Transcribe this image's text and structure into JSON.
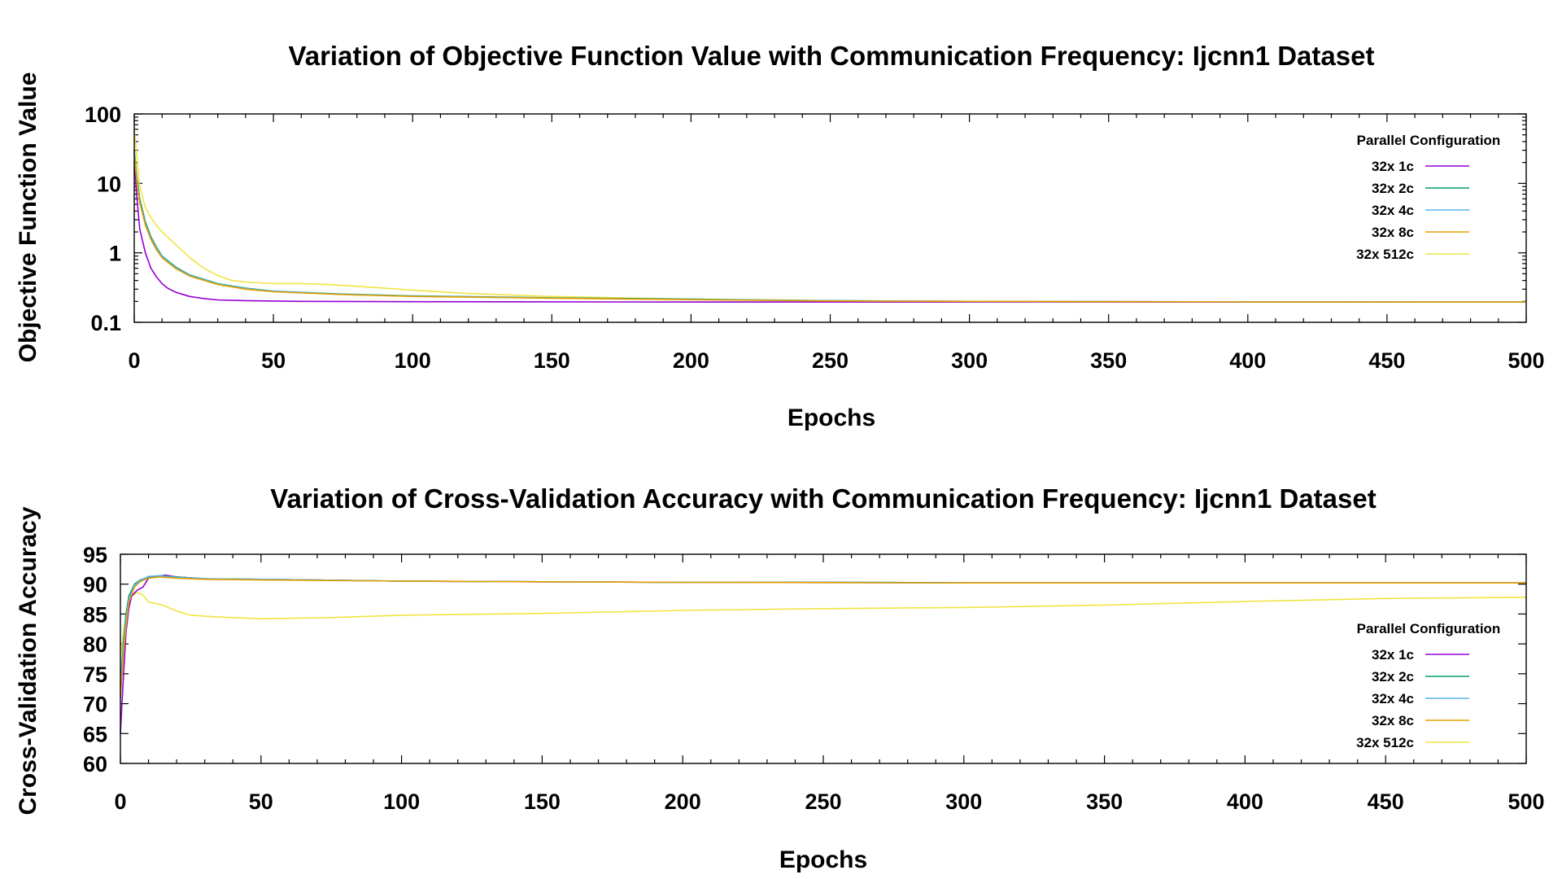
{
  "chart_data": [
    {
      "type": "line",
      "title": "Variation of Objective Function Value with Communication Frequency: Ijcnn1 Dataset",
      "xlabel": "Epochs",
      "ylabel": "Objective Function Value",
      "xlim": [
        0,
        500
      ],
      "ylim": [
        0.1,
        100
      ],
      "yscale": "log",
      "xticks": [
        0,
        50,
        100,
        150,
        200,
        250,
        300,
        350,
        400,
        450,
        500
      ],
      "yticks": [
        0.1,
        1,
        10,
        100
      ],
      "ytick_labels": [
        "0.1",
        "1",
        "10",
        "100"
      ],
      "grid": false,
      "legend_title": "Parallel Configuration",
      "legend_position": "top-right",
      "series": [
        {
          "name": "32x 1c",
          "color": "#9400d3",
          "points": [
            [
              0,
              20
            ],
            [
              1,
              6
            ],
            [
              2,
              2.2
            ],
            [
              4,
              1.0
            ],
            [
              6,
              0.6
            ],
            [
              8,
              0.45
            ],
            [
              10,
              0.36
            ],
            [
              12,
              0.31
            ],
            [
              15,
              0.27
            ],
            [
              20,
              0.235
            ],
            [
              25,
              0.22
            ],
            [
              30,
              0.21
            ],
            [
              40,
              0.205
            ],
            [
              60,
              0.2
            ],
            [
              100,
              0.198
            ],
            [
              200,
              0.196
            ],
            [
              300,
              0.196
            ],
            [
              400,
              0.196
            ],
            [
              500,
              0.196
            ]
          ]
        },
        {
          "name": "32x 2c",
          "color": "#009e73",
          "points": [
            [
              0,
              30
            ],
            [
              1,
              12
            ],
            [
              2,
              6
            ],
            [
              4,
              2.8
            ],
            [
              6,
              1.7
            ],
            [
              8,
              1.2
            ],
            [
              10,
              0.9
            ],
            [
              15,
              0.62
            ],
            [
              20,
              0.48
            ],
            [
              30,
              0.36
            ],
            [
              40,
              0.31
            ],
            [
              50,
              0.28
            ],
            [
              75,
              0.255
            ],
            [
              100,
              0.24
            ],
            [
              150,
              0.225
            ],
            [
              200,
              0.215
            ],
            [
              250,
              0.205
            ],
            [
              300,
              0.2
            ],
            [
              400,
              0.197
            ],
            [
              500,
              0.196
            ]
          ]
        },
        {
          "name": "32x 4c",
          "color": "#56b4e9",
          "points": [
            [
              0,
              28
            ],
            [
              1,
              11
            ],
            [
              2,
              5.5
            ],
            [
              4,
              2.6
            ],
            [
              6,
              1.6
            ],
            [
              8,
              1.15
            ],
            [
              10,
              0.88
            ],
            [
              15,
              0.6
            ],
            [
              20,
              0.47
            ],
            [
              30,
              0.355
            ],
            [
              40,
              0.305
            ],
            [
              50,
              0.278
            ],
            [
              75,
              0.252
            ],
            [
              100,
              0.238
            ],
            [
              150,
              0.223
            ],
            [
              200,
              0.213
            ],
            [
              250,
              0.204
            ],
            [
              300,
              0.2
            ],
            [
              400,
              0.197
            ],
            [
              500,
              0.196
            ]
          ]
        },
        {
          "name": "32x 8c",
          "color": "#e69f00",
          "points": [
            [
              0,
              26
            ],
            [
              1,
              10
            ],
            [
              2,
              5.2
            ],
            [
              4,
              2.5
            ],
            [
              6,
              1.55
            ],
            [
              8,
              1.1
            ],
            [
              10,
              0.85
            ],
            [
              15,
              0.59
            ],
            [
              20,
              0.46
            ],
            [
              30,
              0.35
            ],
            [
              40,
              0.3
            ],
            [
              50,
              0.275
            ],
            [
              75,
              0.25
            ],
            [
              100,
              0.236
            ],
            [
              150,
              0.222
            ],
            [
              200,
              0.212
            ],
            [
              250,
              0.203
            ],
            [
              300,
              0.2
            ],
            [
              400,
              0.197
            ],
            [
              500,
              0.196
            ]
          ]
        },
        {
          "name": "32x 512c",
          "color": "#f0e442",
          "points": [
            [
              0,
              60
            ],
            [
              2,
              9
            ],
            [
              4,
              4.5
            ],
            [
              6,
              3.2
            ],
            [
              8,
              2.5
            ],
            [
              10,
              2.0
            ],
            [
              15,
              1.3
            ],
            [
              20,
              0.85
            ],
            [
              25,
              0.6
            ],
            [
              30,
              0.47
            ],
            [
              35,
              0.4
            ],
            [
              40,
              0.38
            ],
            [
              50,
              0.36
            ],
            [
              60,
              0.36
            ],
            [
              70,
              0.35
            ],
            [
              80,
              0.33
            ],
            [
              90,
              0.31
            ],
            [
              100,
              0.29
            ],
            [
              120,
              0.26
            ],
            [
              150,
              0.235
            ],
            [
              200,
              0.215
            ],
            [
              250,
              0.205
            ],
            [
              300,
              0.198
            ],
            [
              400,
              0.196
            ],
            [
              500,
              0.196
            ]
          ]
        }
      ]
    },
    {
      "type": "line",
      "title": "Variation of Cross-Validation Accuracy with Communication Frequency: Ijcnn1 Dataset",
      "xlabel": "Epochs",
      "ylabel": "Cross-Validation Accuracy",
      "xlim": [
        0,
        500
      ],
      "ylim": [
        60,
        95
      ],
      "yscale": "linear",
      "xticks": [
        0,
        50,
        100,
        150,
        200,
        250,
        300,
        350,
        400,
        450,
        500
      ],
      "yticks": [
        60,
        65,
        70,
        75,
        80,
        85,
        90,
        95
      ],
      "grid": false,
      "legend_title": "Parallel Configuration",
      "legend_position": "right",
      "series": [
        {
          "name": "32x 1c",
          "color": "#9400d3",
          "points": [
            [
              0,
              65
            ],
            [
              1,
              74
            ],
            [
              2,
              82
            ],
            [
              3,
              86
            ],
            [
              4,
              88
            ],
            [
              6,
              89
            ],
            [
              8,
              89.5
            ],
            [
              10,
              91
            ],
            [
              13,
              91.3
            ],
            [
              16,
              91.5
            ],
            [
              20,
              91.2
            ],
            [
              30,
              90.9
            ],
            [
              50,
              90.8
            ],
            [
              100,
              90.5
            ],
            [
              150,
              90.4
            ],
            [
              200,
              90.3
            ],
            [
              250,
              90.3
            ],
            [
              300,
              90.2
            ],
            [
              400,
              90.2
            ],
            [
              500,
              90.2
            ]
          ]
        },
        {
          "name": "32x 2c",
          "color": "#009e73",
          "points": [
            [
              0,
              73
            ],
            [
              1,
              80
            ],
            [
              2,
              85
            ],
            [
              3,
              88
            ],
            [
              5,
              90
            ],
            [
              7,
              90.7
            ],
            [
              10,
              91.2
            ],
            [
              14,
              91.4
            ],
            [
              20,
              91.2
            ],
            [
              30,
              90.9
            ],
            [
              50,
              90.8
            ],
            [
              100,
              90.5
            ],
            [
              150,
              90.4
            ],
            [
              200,
              90.3
            ],
            [
              270,
              90.3
            ],
            [
              300,
              90.2
            ],
            [
              400,
              90.2
            ],
            [
              500,
              90.2
            ]
          ]
        },
        {
          "name": "32x 4c",
          "color": "#56b4e9",
          "points": [
            [
              0,
              72
            ],
            [
              1,
              79
            ],
            [
              2,
              84
            ],
            [
              3,
              87.5
            ],
            [
              5,
              89.8
            ],
            [
              7,
              90.6
            ],
            [
              10,
              91.3
            ],
            [
              14,
              91.4
            ],
            [
              20,
              91.1
            ],
            [
              30,
              90.9
            ],
            [
              50,
              90.8
            ],
            [
              100,
              90.5
            ],
            [
              150,
              90.4
            ],
            [
              200,
              90.3
            ],
            [
              300,
              90.2
            ],
            [
              400,
              90.2
            ],
            [
              500,
              90.2
            ]
          ]
        },
        {
          "name": "32x 8c",
          "color": "#e69f00",
          "points": [
            [
              0,
              71
            ],
            [
              1,
              78
            ],
            [
              2,
              83
            ],
            [
              3,
              87
            ],
            [
              5,
              89.5
            ],
            [
              7,
              90.4
            ],
            [
              10,
              91
            ],
            [
              14,
              91.2
            ],
            [
              20,
              91
            ],
            [
              30,
              90.8
            ],
            [
              50,
              90.7
            ],
            [
              100,
              90.5
            ],
            [
              150,
              90.4
            ],
            [
              200,
              90.3
            ],
            [
              300,
              90.2
            ],
            [
              400,
              90.2
            ],
            [
              500,
              90.2
            ]
          ]
        },
        {
          "name": "32x 512c",
          "color": "#f0e442",
          "points": [
            [
              0,
              78
            ],
            [
              2,
              85
            ],
            [
              4,
              88
            ],
            [
              6,
              88.6
            ],
            [
              8,
              88.2
            ],
            [
              10,
              87
            ],
            [
              15,
              86.5
            ],
            [
              20,
              85.5
            ],
            [
              25,
              84.8
            ],
            [
              35,
              84.5
            ],
            [
              50,
              84.2
            ],
            [
              75,
              84.4
            ],
            [
              100,
              84.8
            ],
            [
              150,
              85.1
            ],
            [
              200,
              85.6
            ],
            [
              250,
              85.9
            ],
            [
              300,
              86.1
            ],
            [
              350,
              86.5
            ],
            [
              400,
              87.1
            ],
            [
              450,
              87.6
            ],
            [
              500,
              87.8
            ]
          ]
        }
      ]
    }
  ]
}
